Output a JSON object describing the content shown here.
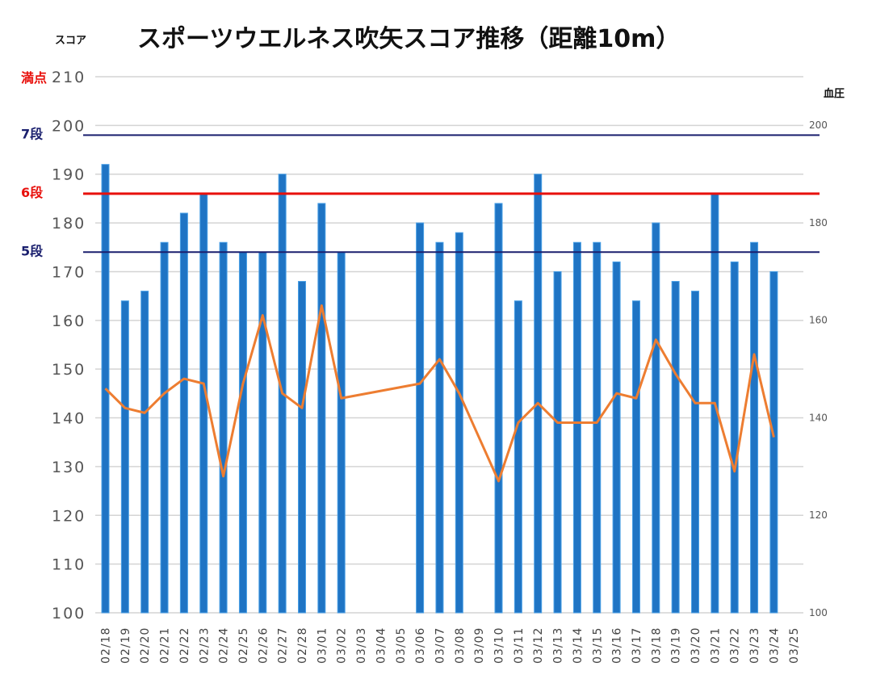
{
  "chart_data": {
    "type": "bar+line",
    "title": "スポーツウエルネス吹矢スコア推移（距離10m）",
    "y_left_label": "スコア",
    "y_right_label": "血圧",
    "y_left_range": [
      100,
      210
    ],
    "y_left_ticks": [
      "100",
      "110",
      "120",
      "130",
      "140",
      "150",
      "160",
      "170",
      "180",
      "190",
      "200",
      "210"
    ],
    "y_right_range": [
      100,
      210
    ],
    "y_right_ticks": [
      "100",
      "120",
      "140",
      "160",
      "180",
      "200"
    ],
    "grid": true,
    "categories": [
      "02/18",
      "02/19",
      "02/20",
      "02/21",
      "02/22",
      "02/23",
      "02/24",
      "02/25",
      "02/26",
      "02/27",
      "02/28",
      "03/01",
      "03/02",
      "03/03",
      "03/04",
      "03/05",
      "03/06",
      "03/07",
      "03/08",
      "03/09",
      "03/10",
      "03/11",
      "03/12",
      "03/13",
      "03/14",
      "03/15",
      "03/16",
      "03/17",
      "03/18",
      "03/19",
      "03/20",
      "03/21",
      "03/22",
      "03/23",
      "03/24",
      "03/25"
    ],
    "series": [
      {
        "type": "bar",
        "axis": "left",
        "color": "#1f74c4",
        "values": [
          192,
          164,
          166,
          176,
          182,
          186,
          176,
          174,
          174,
          190,
          168,
          184,
          174,
          null,
          null,
          null,
          180,
          176,
          178,
          null,
          184,
          164,
          190,
          170,
          176,
          176,
          172,
          164,
          180,
          168,
          166,
          186,
          172,
          176,
          170,
          null
        ]
      },
      {
        "type": "line",
        "axis": "right",
        "color": "#ed7d31",
        "values": [
          146,
          142,
          141,
          145,
          148,
          147,
          128,
          147,
          161,
          145,
          142,
          163,
          144,
          null,
          null,
          null,
          147,
          152,
          145,
          null,
          127,
          139,
          143,
          139,
          139,
          139,
          145,
          144,
          156,
          149,
          143,
          143,
          129,
          153,
          136,
          null
        ]
      }
    ],
    "reference_lines": [
      {
        "label": "満点",
        "value": 210,
        "color": "#e8100c"
      },
      {
        "label": "7段",
        "value": 198,
        "color": "#1a1f6e"
      },
      {
        "label": "6段",
        "value": 186,
        "color": "#e8100c"
      },
      {
        "label": "5段",
        "value": 174,
        "color": "#1a1f6e"
      }
    ]
  }
}
